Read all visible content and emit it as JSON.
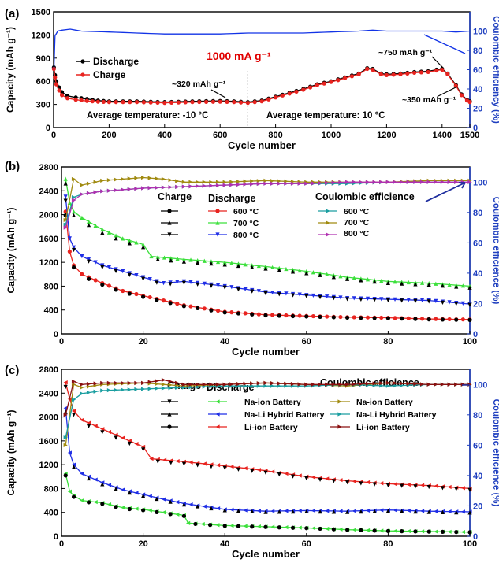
{
  "panels": [
    {
      "id": "a",
      "label": "(a)",
      "xlabel": "Cycle number",
      "ylabel_left": "Capacity (mAh g⁻¹)",
      "ylabel_right": "Coulombic efficiency (%)",
      "xticks": [
        "0",
        "200",
        "400",
        "600",
        "800",
        "1000",
        "1200",
        "1400",
        "1500"
      ],
      "yticks_left": [
        "0",
        "300",
        "600",
        "900",
        "1200",
        "1500"
      ],
      "yticks_right": [
        "0",
        "20",
        "40",
        "60",
        "80",
        "100"
      ],
      "current_label": "1000 mA g⁻¹",
      "legend": [
        "Discharge",
        "Charge"
      ],
      "annotations": [
        "~320 mAh g⁻¹",
        "~750 mAh g⁻¹",
        "~350 mAh g⁻¹"
      ],
      "temperature_notes": [
        "Average temperature: -10 °C",
        "Average temperature: 10 °C"
      ]
    },
    {
      "id": "b",
      "label": "(b)",
      "xlabel": "Cycle number",
      "ylabel_left": "Capacity (mAh g⁻¹)",
      "ylabel_right": "Coulombic efficience (%)",
      "xticks": [
        "0",
        "20",
        "40",
        "60",
        "80",
        "100"
      ],
      "yticks_left": [
        "0",
        "400",
        "800",
        "1200",
        "1600",
        "2000",
        "2400",
        "2800"
      ],
      "yticks_right": [
        "0",
        "20",
        "40",
        "60",
        "80",
        "100"
      ],
      "legend_headers": [
        "Charge",
        "Discharge",
        "Coulombic efficience"
      ],
      "legend_entries": [
        "600 °C",
        "700 °C",
        "800 °C"
      ]
    },
    {
      "id": "c",
      "label": "(c)",
      "xlabel": "Cycle number",
      "ylabel_left": "Capacity (mAh g⁻¹)",
      "ylabel_right": "Coulombic efficience (%)",
      "xticks": [
        "0",
        "20",
        "40",
        "60",
        "80",
        "100"
      ],
      "yticks_left": [
        "0",
        "400",
        "800",
        "1200",
        "1600",
        "2000",
        "2400",
        "2800"
      ],
      "yticks_right": [
        "0",
        "20",
        "40",
        "60",
        "80",
        "100"
      ],
      "legend_headers": [
        "Charge",
        "Discharge",
        "Coulombic efficience"
      ],
      "legend_entries": [
        "Na-ion Battery",
        "Na-Li Hybrid Battery",
        "Li-ion Battery"
      ]
    }
  ],
  "colors": {
    "axis": "#000000",
    "right_axis": "#1f3fbf",
    "annotation_red": "#e00000",
    "charge_red": "#e8231f",
    "discharge_black": "#000000",
    "ce_blue": "#1233e6",
    "green": "#3ce03c",
    "blue": "#1f2ee6",
    "red": "#e8231f",
    "teal": "#1a9ea0",
    "olive": "#a08a10",
    "magenta": "#b030b0",
    "darkred": "#8a1010"
  },
  "chart_data": [
    {
      "panel": "a",
      "type": "line",
      "xlim": [
        0,
        1500
      ],
      "ylim_left": [
        0,
        1500
      ],
      "ylim_right": [
        0,
        120
      ],
      "series": [
        {
          "name": "Discharge",
          "axis": "left",
          "color": "#000000",
          "x": [
            1,
            5,
            10,
            20,
            30,
            50,
            80,
            120,
            160,
            200,
            300,
            400,
            500,
            600,
            650,
            700,
            750,
            800,
            850,
            900,
            950,
            1000,
            1050,
            1100,
            1130,
            1150,
            1180,
            1200,
            1250,
            1300,
            1350,
            1380,
            1400,
            1420,
            1450,
            1470,
            1490,
            1500
          ],
          "y": [
            780,
            680,
            600,
            520,
            460,
            410,
            390,
            370,
            350,
            340,
            340,
            330,
            340,
            345,
            340,
            330,
            350,
            400,
            450,
            500,
            560,
            600,
            650,
            700,
            770,
            760,
            700,
            690,
            700,
            720,
            730,
            750,
            760,
            700,
            550,
            430,
            360,
            340
          ]
        },
        {
          "name": "Charge",
          "axis": "left",
          "color": "#e8231f",
          "x": [
            1,
            5,
            10,
            20,
            30,
            50,
            80,
            120,
            160,
            200,
            300,
            400,
            500,
            600,
            650,
            700,
            750,
            800,
            850,
            900,
            950,
            1000,
            1050,
            1100,
            1130,
            1150,
            1180,
            1200,
            1250,
            1300,
            1350,
            1380,
            1400,
            1420,
            1450,
            1470,
            1490,
            1500
          ],
          "y": [
            760,
            650,
            560,
            480,
            420,
            380,
            360,
            345,
            335,
            330,
            330,
            320,
            330,
            335,
            330,
            320,
            340,
            390,
            440,
            490,
            550,
            590,
            640,
            690,
            760,
            750,
            690,
            680,
            690,
            710,
            720,
            740,
            750,
            690,
            540,
            420,
            350,
            330
          ]
        },
        {
          "name": "CE",
          "axis": "right",
          "color": "#1233e6",
          "x": [
            1,
            5,
            15,
            30,
            60,
            100,
            200,
            300,
            400,
            500,
            600,
            700,
            800,
            900,
            1000,
            1100,
            1150,
            1200,
            1300,
            1400,
            1450,
            1500
          ],
          "y": [
            60,
            95,
            100,
            101,
            102,
            100,
            99,
            98,
            97,
            97,
            97,
            98,
            98,
            98,
            99,
            100,
            101,
            100,
            100,
            100,
            99,
            100
          ]
        }
      ]
    },
    {
      "panel": "b",
      "type": "line",
      "xlim": [
        0,
        100
      ],
      "ylim_left": [
        0,
        2800
      ],
      "ylim_right": [
        0,
        110
      ],
      "series": [
        {
          "name": "600 °C",
          "role": "Discharge",
          "axis": "left",
          "color": "#e8231f",
          "x": [
            1,
            2,
            3,
            5,
            10,
            15,
            20,
            30,
            40,
            50,
            60,
            70,
            80,
            90,
            100
          ],
          "y": [
            2050,
            1380,
            1150,
            1000,
            850,
            720,
            640,
            480,
            370,
            320,
            300,
            280,
            270,
            250,
            240
          ]
        },
        {
          "name": "700 °C",
          "role": "Discharge",
          "axis": "left",
          "color": "#3ce03c",
          "x": [
            1,
            2,
            3,
            5,
            10,
            15,
            20,
            22,
            30,
            40,
            50,
            60,
            70,
            80,
            90,
            100
          ],
          "y": [
            2600,
            2200,
            2050,
            1950,
            1750,
            1600,
            1500,
            1300,
            1250,
            1200,
            1130,
            1050,
            950,
            880,
            850,
            800
          ]
        },
        {
          "name": "800 °C",
          "role": "Discharge",
          "axis": "left",
          "color": "#1f2ee6",
          "x": [
            1,
            2,
            3,
            5,
            10,
            15,
            20,
            25,
            30,
            40,
            50,
            60,
            70,
            80,
            90,
            100
          ],
          "y": [
            2300,
            1600,
            1450,
            1300,
            1150,
            1050,
            950,
            850,
            880,
            800,
            700,
            650,
            600,
            580,
            560,
            500
          ]
        },
        {
          "name": "600 °C",
          "role": "Coulombic efficience",
          "axis": "right",
          "color": "#1a9ea0",
          "x": [
            1,
            3,
            5,
            10,
            20,
            30,
            40,
            50,
            60,
            70,
            80,
            90,
            100
          ],
          "y": [
            72,
            90,
            92,
            94,
            96,
            97,
            98,
            99,
            99,
            99,
            100,
            100,
            100
          ]
        },
        {
          "name": "700 °C",
          "role": "Coulombic efficience",
          "axis": "right",
          "color": "#a08a10",
          "x": [
            1,
            3,
            5,
            10,
            20,
            25,
            30,
            40,
            50,
            60,
            70,
            80,
            90,
            100
          ],
          "y": [
            75,
            102,
            98,
            101,
            103,
            102,
            100,
            100,
            101,
            100,
            100,
            100,
            101,
            101
          ]
        },
        {
          "name": "800 °C",
          "role": "Coulombic efficience",
          "axis": "right",
          "color": "#b030b0",
          "x": [
            1,
            3,
            5,
            10,
            20,
            30,
            40,
            50,
            60,
            70,
            80,
            90,
            100
          ],
          "y": [
            70,
            88,
            92,
            94,
            96,
            97,
            98,
            99,
            99,
            100,
            100,
            100,
            100
          ]
        }
      ]
    },
    {
      "panel": "c",
      "type": "line",
      "xlim": [
        0,
        100
      ],
      "ylim_left": [
        0,
        2800
      ],
      "ylim_right": [
        0,
        110
      ],
      "series": [
        {
          "name": "Na-ion Battery",
          "role": "Discharge",
          "axis": "left",
          "color": "#3ce03c",
          "x": [
            1,
            2,
            3,
            5,
            10,
            15,
            20,
            25,
            30,
            31,
            40,
            50,
            60,
            70,
            80,
            90,
            100
          ],
          "y": [
            1050,
            750,
            680,
            600,
            560,
            480,
            450,
            400,
            350,
            220,
            180,
            160,
            140,
            110,
            90,
            80,
            70
          ]
        },
        {
          "name": "Na-Li Hybrid Battery",
          "role": "Discharge",
          "axis": "left",
          "color": "#1f2ee6",
          "x": [
            1,
            2,
            3,
            5,
            10,
            15,
            20,
            25,
            30,
            40,
            50,
            60,
            70,
            80,
            90,
            100
          ],
          "y": [
            2150,
            1400,
            1200,
            1050,
            900,
            780,
            700,
            620,
            550,
            450,
            420,
            430,
            420,
            440,
            420,
            410
          ]
        },
        {
          "name": "Li-ion Battery",
          "role": "Discharge",
          "axis": "left",
          "color": "#e8231f",
          "x": [
            1,
            2,
            3,
            5,
            10,
            15,
            20,
            22,
            30,
            40,
            50,
            60,
            70,
            80,
            90,
            100
          ],
          "y": [
            2580,
            2300,
            2100,
            1950,
            1800,
            1650,
            1500,
            1300,
            1250,
            1180,
            1100,
            1000,
            930,
            880,
            850,
            800
          ]
        },
        {
          "name": "Na-ion Battery",
          "role": "Coulombic efficience",
          "axis": "right",
          "color": "#a08a10",
          "x": [
            1,
            3,
            5,
            10,
            20,
            30,
            40,
            50,
            60,
            70,
            80,
            90,
            100
          ],
          "y": [
            60,
            100,
            98,
            100,
            101,
            99,
            100,
            101,
            100,
            99,
            101,
            100,
            100
          ]
        },
        {
          "name": "Na-Li Hybrid Battery",
          "role": "Coulombic efficience",
          "axis": "right",
          "color": "#1a9ea0",
          "x": [
            1,
            3,
            5,
            10,
            20,
            30,
            40,
            50,
            60,
            70,
            80,
            90,
            100
          ],
          "y": [
            65,
            90,
            94,
            96,
            97,
            98,
            99,
            99,
            99,
            100,
            99,
            100,
            100
          ]
        },
        {
          "name": "Li-ion Battery",
          "role": "Coulombic efficience",
          "axis": "right",
          "color": "#8a1010",
          "x": [
            1,
            3,
            5,
            10,
            20,
            25,
            30,
            40,
            50,
            60,
            70,
            80,
            90,
            100
          ],
          "y": [
            80,
            102,
            100,
            101,
            101,
            103,
            100,
            100,
            101,
            100,
            100,
            101,
            100,
            100
          ]
        }
      ]
    }
  ]
}
